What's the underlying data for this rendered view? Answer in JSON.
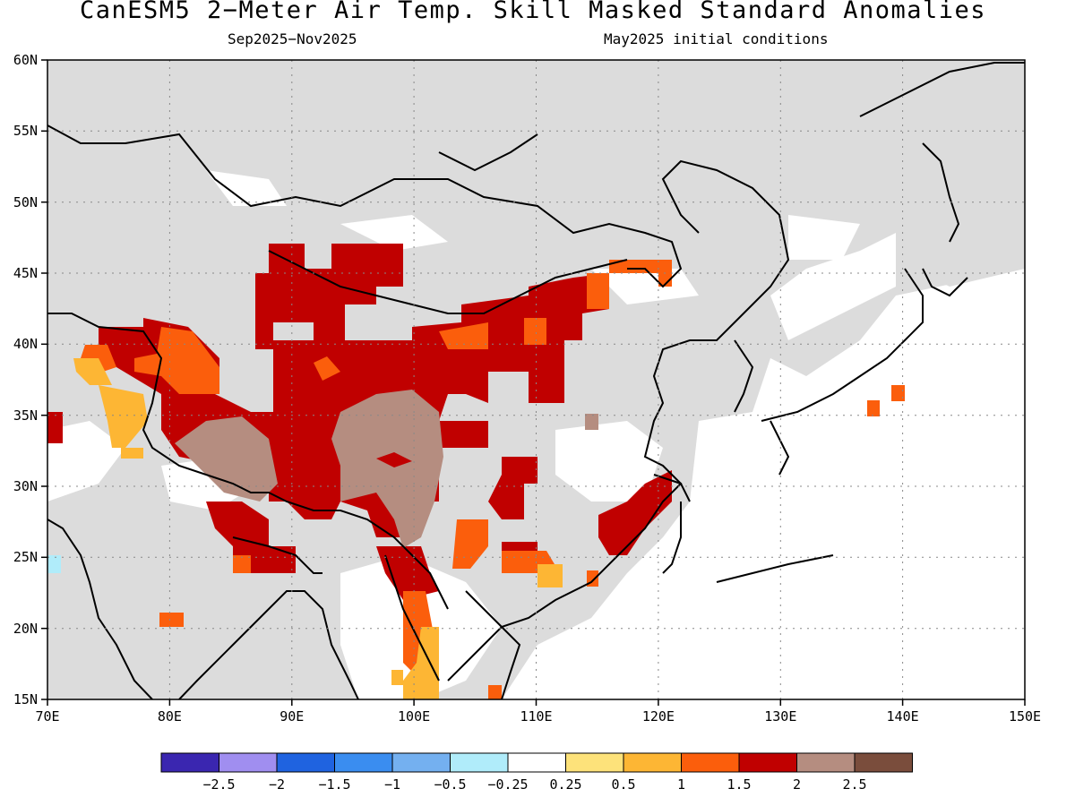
{
  "title": "CanESM5 2−Meter Air Temp. Skill Masked Standard Anomalies",
  "subtitle_left": "Sep2025−Nov2025",
  "subtitle_right": "May2025 initial conditions",
  "map": {
    "lon_range": [
      70,
      150
    ],
    "lat_range": [
      15,
      60
    ],
    "lon_ticks": [
      "70E",
      "80E",
      "90E",
      "100E",
      "110E",
      "120E",
      "130E",
      "140E",
      "150E"
    ],
    "lat_ticks": [
      "15N",
      "20N",
      "25N",
      "30N",
      "35N",
      "40N",
      "45N",
      "50N",
      "55N",
      "60N"
    ],
    "grid": "dotted",
    "masked_color": "#dcdcdc",
    "land_outline": "coastlines and country borders"
  },
  "colorbar": {
    "labels": [
      "−2.5",
      "−2",
      "−1.5",
      "−1",
      "−0.5",
      "−0.25",
      "0.25",
      "0.5",
      "1",
      "1.5",
      "2",
      "2.5"
    ],
    "colors": [
      "#3a26b0",
      "#a08ef0",
      "#1f63e0",
      "#3a8df0",
      "#74b0f0",
      "#b0ecfa",
      "#ffffff",
      "#fde27a",
      "#fdb634",
      "#fb5e0c",
      "#c00000",
      "#b58d80",
      "#7a4d3c"
    ]
  }
}
